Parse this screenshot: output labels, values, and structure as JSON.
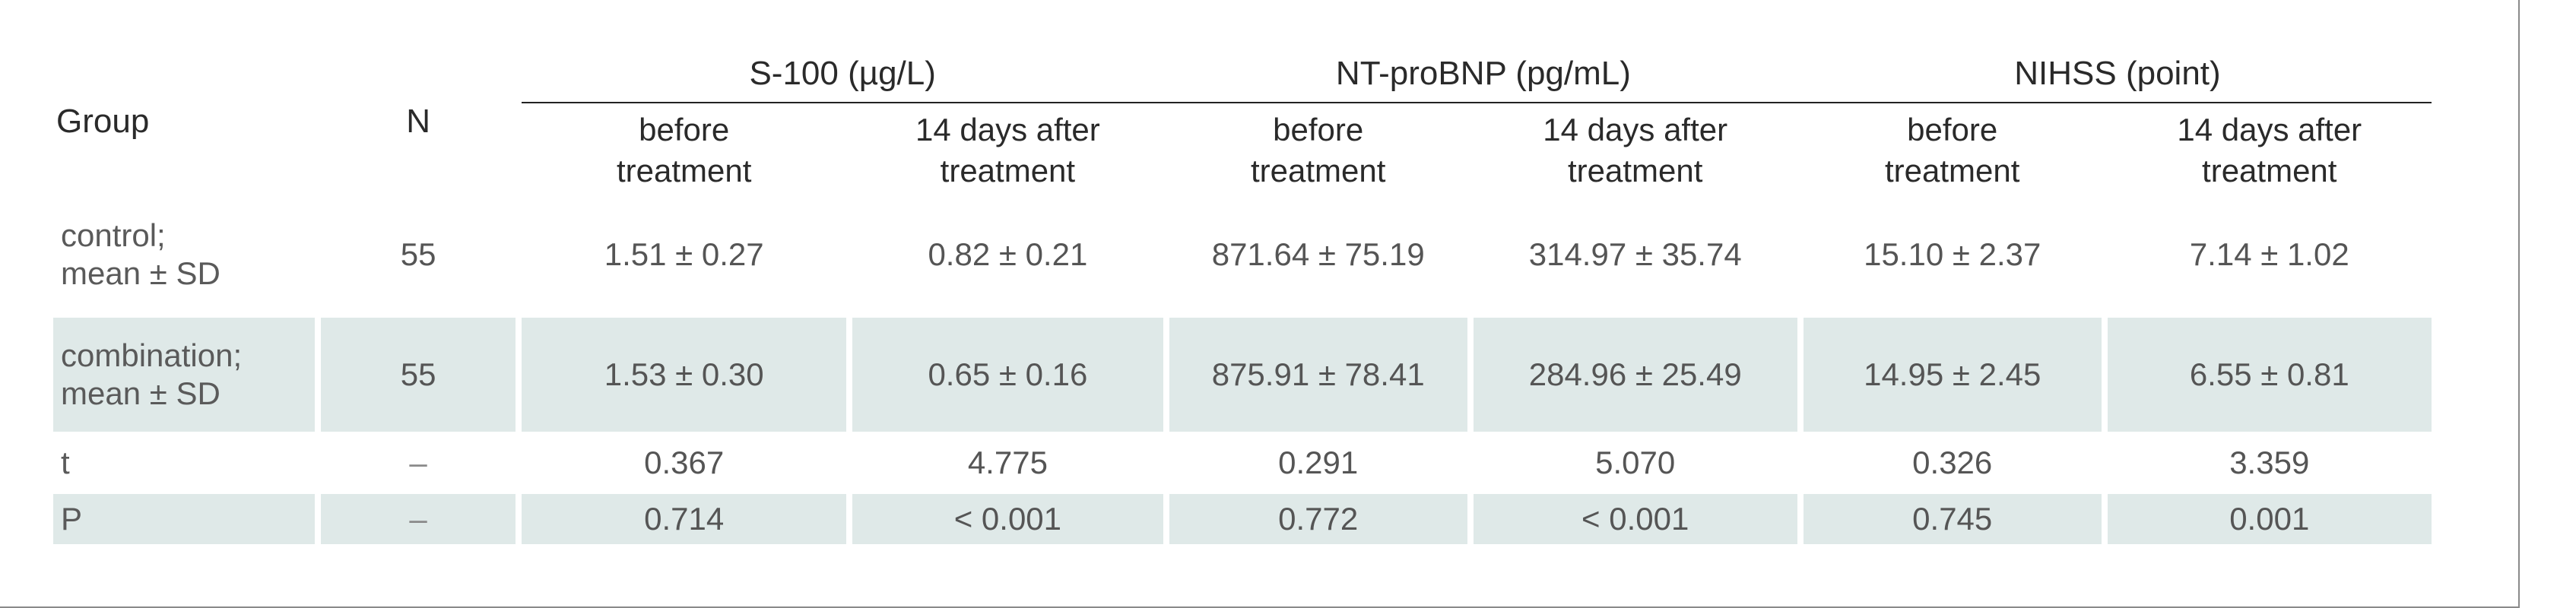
{
  "table": {
    "headers": {
      "group": "Group",
      "n": "N",
      "groups": [
        {
          "label": "S-100 (µg/L)",
          "sub": [
            "before\ntreatment",
            "14 days after\ntreatment"
          ]
        },
        {
          "label": "NT-proBNP (pg/mL)",
          "sub": [
            "before\ntreatment",
            "14 days after\ntreatment"
          ]
        },
        {
          "label": "NIHSS (point)",
          "sub": [
            "before\ntreatment",
            "14 days after\ntreatment"
          ]
        }
      ]
    },
    "rows": [
      {
        "label": "control;\nmean ± SD",
        "n": "55",
        "values": [
          "1.51 ± 0.27",
          "0.82 ± 0.21",
          "871.64 ± 75.19",
          "314.97 ± 35.74",
          "15.10 ± 2.37",
          "7.14 ± 1.02"
        ]
      },
      {
        "label": "combination;\nmean ± SD",
        "n": "55",
        "values": [
          "1.53 ± 0.30",
          "0.65 ± 0.16",
          "875.91 ± 78.41",
          "284.96 ± 25.49",
          "14.95 ± 2.45",
          "6.55 ± 0.81"
        ]
      },
      {
        "label": "t",
        "n": "–",
        "values": [
          "0.367",
          "4.775",
          "0.291",
          "5.070",
          "0.326",
          "3.359"
        ]
      },
      {
        "label": "P",
        "n": "–",
        "values": [
          "0.714",
          "< 0.001",
          "0.772",
          "< 0.001",
          "0.745",
          "0.001"
        ]
      }
    ]
  },
  "colors": {
    "shade": "#dfe9e8",
    "text": "#555555",
    "rule": "#222222"
  }
}
